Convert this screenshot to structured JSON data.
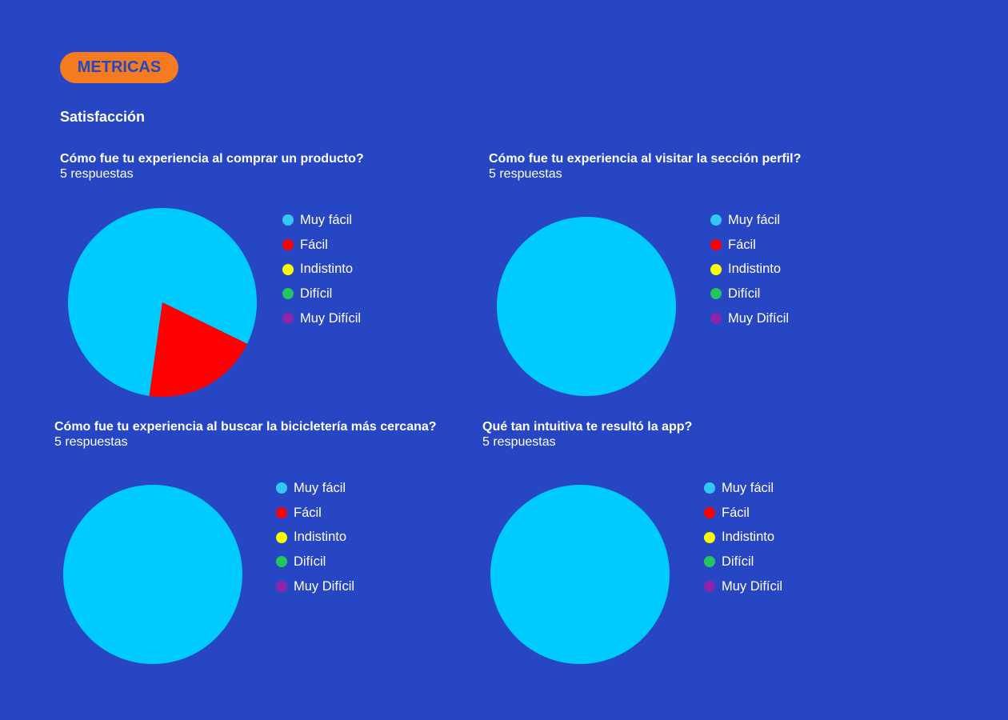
{
  "header": {
    "badge_label": "METRICAS",
    "section_title": "Satisfacción"
  },
  "legend_colors": {
    "Muy fácil": "#33c7f5",
    "Fácil": "#ff0000",
    "Indistinto": "#ffff00",
    "Difícil": "#22c55e",
    "Muy Difícil": "#8e24aa"
  },
  "background_color": "#2746c4",
  "badge_color": "#f47b20",
  "chart_data": [
    {
      "type": "pie",
      "title": "Cómo fue tu experiencia al comprar un producto?",
      "subtitle": "5 respuestas",
      "categories": [
        "Muy fácil",
        "Fácil",
        "Indistinto",
        "Difícil",
        "Muy Difícil"
      ],
      "values": [
        4,
        1,
        0,
        0,
        0
      ],
      "colors": [
        "#00cbff",
        "#ff0000",
        "#ffff00",
        "#22c55e",
        "#8e24aa"
      ],
      "legend": "right"
    },
    {
      "type": "pie",
      "title": "Cómo fue tu experiencia al visitar la sección perfil?",
      "subtitle": "5 respuestas",
      "categories": [
        "Muy fácil",
        "Fácil",
        "Indistinto",
        "Difícil",
        "Muy Difícil"
      ],
      "values": [
        5,
        0,
        0,
        0,
        0
      ],
      "colors": [
        "#00cbff",
        "#ff0000",
        "#ffff00",
        "#22c55e",
        "#8e24aa"
      ],
      "legend": "right"
    },
    {
      "type": "pie",
      "title": "Cómo fue tu experiencia al buscar la bicicletería más cercana?",
      "subtitle": "5 respuestas",
      "categories": [
        "Muy fácil",
        "Fácil",
        "Indistinto",
        "Difícil",
        "Muy Difícil"
      ],
      "values": [
        5,
        0,
        0,
        0,
        0
      ],
      "colors": [
        "#00cbff",
        "#ff0000",
        "#ffff00",
        "#22c55e",
        "#8e24aa"
      ],
      "legend": "right"
    },
    {
      "type": "pie",
      "title": "Qué tan intuitiva te resultó la app?",
      "subtitle": "5 respuestas",
      "categories": [
        "Muy fácil",
        "Fácil",
        "Indistinto",
        "Difícil",
        "Muy Difícil"
      ],
      "values": [
        5,
        0,
        0,
        0,
        0
      ],
      "colors": [
        "#00cbff",
        "#ff0000",
        "#ffff00",
        "#22c55e",
        "#8e24aa"
      ],
      "legend": "right"
    }
  ]
}
